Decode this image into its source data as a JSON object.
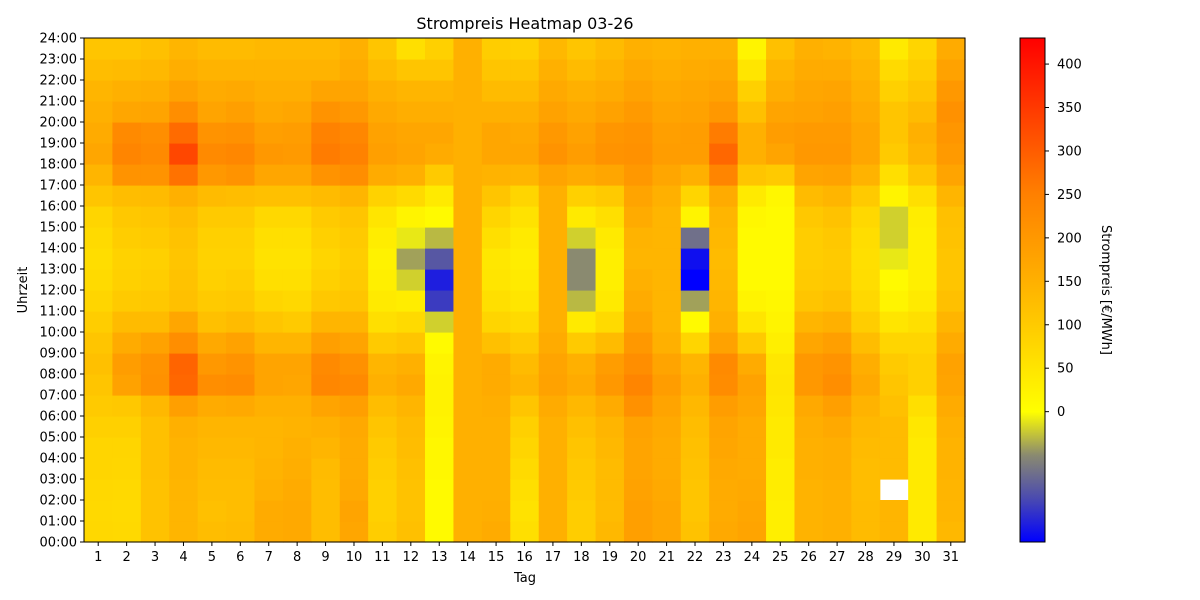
{
  "chart_data": {
    "type": "heatmap",
    "title": "Strompreis Heatmap 03-26",
    "xlabel": "Tag",
    "ylabel": "Uhrzeit",
    "colorbar_label": "Strompreis [€/MWh]",
    "x_categories": [
      "1",
      "2",
      "3",
      "4",
      "5",
      "6",
      "7",
      "8",
      "9",
      "10",
      "11",
      "12",
      "13",
      "14",
      "15",
      "16",
      "17",
      "18",
      "19",
      "20",
      "21",
      "22",
      "23",
      "24",
      "25",
      "26",
      "27",
      "28",
      "29",
      "30",
      "31"
    ],
    "y_ticks": [
      "00:00",
      "01:00",
      "02:00",
      "03:00",
      "04:00",
      "05:00",
      "06:00",
      "07:00",
      "08:00",
      "09:00",
      "10:00",
      "11:00",
      "12:00",
      "13:00",
      "14:00",
      "15:00",
      "16:00",
      "17:00",
      "18:00",
      "19:00",
      "20:00",
      "21:00",
      "22:00",
      "23:00",
      "24:00"
    ],
    "colorbar_ticks": [
      0,
      50,
      100,
      150,
      200,
      250,
      300,
      350,
      400
    ],
    "value_range": [
      -150,
      430
    ],
    "colormap": [
      {
        "value": -150,
        "color": "#0000ff"
      },
      {
        "value": -100,
        "color": "#4a4ab0"
      },
      {
        "value": -50,
        "color": "#8a8a70"
      },
      {
        "value": 0,
        "color": "#ffff00"
      },
      {
        "value": 150,
        "color": "#ffb000"
      },
      {
        "value": 250,
        "color": "#ff8000"
      },
      {
        "value": 430,
        "color": "#ff0000"
      }
    ],
    "hours": [
      "00",
      "01",
      "02",
      "03",
      "04",
      "05",
      "06",
      "07",
      "08",
      "09",
      "10",
      "11",
      "12",
      "13",
      "14",
      "15",
      "16",
      "17",
      "18",
      "19",
      "20",
      "21",
      "22",
      "23"
    ],
    "values": [
      [
        75,
        72,
        75,
        80,
        80,
        90,
        100,
        110,
        120,
        110,
        95,
        80,
        70,
        65,
        70,
        80,
        110,
        140,
        170,
        160,
        150,
        140,
        125,
        110
      ],
      [
        72,
        70,
        72,
        78,
        80,
        90,
        105,
        180,
        190,
        160,
        130,
        100,
        90,
        85,
        95,
        105,
        125,
        210,
        240,
        230,
        170,
        150,
        130,
        110
      ],
      [
        115,
        115,
        115,
        120,
        120,
        120,
        135,
        215,
        210,
        180,
        130,
        105,
        95,
        90,
        100,
        110,
        130,
        210,
        230,
        220,
        175,
        155,
        135,
        120
      ],
      [
        140,
        140,
        140,
        145,
        145,
        150,
        185,
        285,
        290,
        220,
        170,
        120,
        115,
        110,
        115,
        125,
        150,
        270,
        330,
        280,
        220,
        180,
        155,
        140
      ],
      [
        125,
        120,
        125,
        130,
        135,
        140,
        160,
        220,
        200,
        165,
        120,
        100,
        90,
        85,
        90,
        100,
        130,
        200,
        230,
        210,
        175,
        160,
        145,
        130
      ],
      [
        130,
        125,
        125,
        130,
        135,
        140,
        165,
        225,
        210,
        180,
        130,
        105,
        95,
        85,
        90,
        100,
        125,
        210,
        235,
        215,
        185,
        165,
        145,
        130
      ],
      [
        160,
        160,
        150,
        145,
        140,
        140,
        150,
        175,
        175,
        140,
        110,
        80,
        60,
        55,
        60,
        75,
        120,
        170,
        200,
        185,
        165,
        155,
        145,
        135
      ],
      [
        165,
        165,
        160,
        155,
        150,
        145,
        150,
        170,
        175,
        140,
        100,
        75,
        60,
        55,
        60,
        75,
        120,
        170,
        195,
        190,
        170,
        155,
        145,
        135
      ],
      [
        125,
        125,
        125,
        130,
        140,
        150,
        175,
        235,
        230,
        185,
        140,
        105,
        90,
        80,
        90,
        100,
        130,
        210,
        255,
        245,
        210,
        175,
        145,
        135
      ],
      [
        170,
        175,
        165,
        160,
        160,
        165,
        185,
        230,
        215,
        175,
        140,
        110,
        100,
        95,
        100,
        110,
        140,
        220,
        245,
        235,
        200,
        175,
        160,
        150
      ],
      [
        95,
        90,
        90,
        95,
        100,
        110,
        125,
        150,
        140,
        100,
        60,
        40,
        30,
        25,
        35,
        50,
        85,
        160,
        185,
        180,
        165,
        150,
        130,
        110
      ],
      [
        120,
        115,
        115,
        120,
        125,
        130,
        140,
        165,
        150,
        110,
        70,
        35,
        -20,
        -40,
        -10,
        20,
        70,
        150,
        175,
        170,
        155,
        140,
        110,
        60
      ],
      [
        10,
        10,
        10,
        15,
        15,
        20,
        25,
        25,
        20,
        10,
        -20,
        -110,
        -130,
        -90,
        -30,
        10,
        40,
        100,
        160,
        170,
        155,
        140,
        110,
        90
      ],
      [
        150,
        150,
        150,
        150,
        150,
        150,
        150,
        150,
        150,
        150,
        150,
        150,
        150,
        150,
        150,
        150,
        150,
        150,
        150,
        150,
        150,
        150,
        150,
        150
      ],
      [
        160,
        155,
        150,
        150,
        150,
        150,
        155,
        160,
        160,
        120,
        80,
        60,
        50,
        45,
        60,
        80,
        110,
        145,
        170,
        170,
        150,
        130,
        110,
        95
      ],
      [
        60,
        55,
        60,
        70,
        80,
        90,
        110,
        140,
        130,
        100,
        70,
        50,
        40,
        35,
        40,
        55,
        80,
        140,
        170,
        165,
        150,
        130,
        110,
        90
      ],
      [
        150,
        150,
        150,
        150,
        150,
        150,
        160,
        180,
        175,
        160,
        150,
        150,
        150,
        150,
        150,
        150,
        150,
        175,
        210,
        200,
        180,
        165,
        150,
        135
      ],
      [
        95,
        95,
        100,
        105,
        110,
        120,
        135,
        160,
        150,
        100,
        40,
        -30,
        -50,
        -50,
        -20,
        40,
        90,
        160,
        190,
        180,
        165,
        150,
        130,
        110
      ],
      [
        135,
        130,
        130,
        130,
        135,
        140,
        160,
        200,
        190,
        130,
        70,
        40,
        30,
        30,
        40,
        60,
        100,
        170,
        210,
        205,
        180,
        160,
        145,
        130
      ],
      [
        185,
        185,
        180,
        175,
        175,
        180,
        215,
        240,
        220,
        200,
        175,
        160,
        150,
        140,
        145,
        160,
        175,
        200,
        215,
        210,
        195,
        180,
        165,
        150
      ],
      [
        170,
        170,
        165,
        160,
        160,
        165,
        175,
        190,
        175,
        150,
        140,
        140,
        140,
        140,
        140,
        140,
        150,
        170,
        190,
        185,
        175,
        165,
        155,
        145
      ],
      [
        115,
        110,
        110,
        115,
        120,
        125,
        135,
        150,
        140,
        80,
        10,
        -40,
        -150,
        -140,
        -70,
        20,
        80,
        150,
        190,
        190,
        180,
        170,
        160,
        150
      ],
      [
        165,
        160,
        160,
        165,
        170,
        175,
        190,
        225,
        230,
        180,
        150,
        140,
        135,
        130,
        135,
        140,
        160,
        240,
        285,
        255,
        200,
        180,
        165,
        150
      ],
      [
        175,
        170,
        165,
        160,
        160,
        160,
        170,
        180,
        160,
        100,
        50,
        20,
        10,
        10,
        10,
        15,
        40,
        110,
        150,
        150,
        120,
        90,
        50,
        20
      ],
      [
        30,
        30,
        35,
        35,
        40,
        40,
        45,
        50,
        45,
        30,
        20,
        15,
        10,
        10,
        10,
        10,
        15,
        100,
        175,
        190,
        175,
        155,
        140,
        120
      ],
      [
        145,
        145,
        145,
        150,
        150,
        155,
        165,
        200,
        200,
        170,
        140,
        110,
        100,
        95,
        95,
        105,
        130,
        175,
        200,
        195,
        180,
        170,
        160,
        150
      ],
      [
        150,
        150,
        150,
        155,
        155,
        165,
        185,
        220,
        210,
        185,
        150,
        120,
        105,
        100,
        105,
        115,
        140,
        180,
        200,
        195,
        185,
        175,
        160,
        145
      ],
      [
        130,
        130,
        125,
        125,
        130,
        135,
        145,
        165,
        155,
        125,
        95,
        75,
        65,
        60,
        65,
        75,
        100,
        145,
        170,
        170,
        160,
        150,
        140,
        130
      ],
      [
        140,
        140,
        null,
        130,
        130,
        130,
        120,
        110,
        100,
        80,
        50,
        20,
        10,
        -10,
        -20,
        -20,
        20,
        60,
        100,
        110,
        110,
        90,
        70,
        40
      ],
      [
        40,
        40,
        40,
        40,
        40,
        45,
        60,
        90,
        90,
        80,
        60,
        40,
        30,
        30,
        30,
        35,
        60,
        110,
        140,
        150,
        130,
        110,
        95,
        80
      ],
      [
        135,
        140,
        140,
        145,
        145,
        150,
        160,
        175,
        180,
        160,
        140,
        120,
        110,
        110,
        115,
        120,
        140,
        175,
        195,
        205,
        215,
        200,
        180,
        160
      ]
    ]
  }
}
